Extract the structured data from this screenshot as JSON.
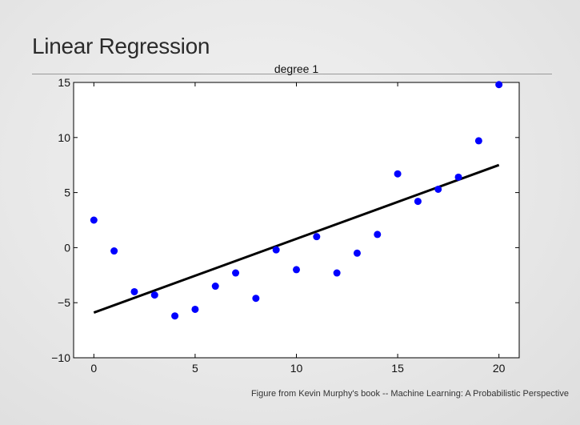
{
  "slide": {
    "title": "Linear Regression",
    "caption": "Figure from Kevin Murphy's book -- Machine Learning: A Probabilistic Perspective"
  },
  "chart_data": {
    "type": "scatter",
    "title": "degree 1",
    "xlabel": "",
    "ylabel": "",
    "xlim": [
      -1,
      21
    ],
    "ylim": [
      -10,
      15
    ],
    "xticks": [
      0,
      5,
      10,
      15,
      20
    ],
    "yticks": [
      -10,
      -5,
      0,
      5,
      10,
      15
    ],
    "grid": false,
    "legend": "none",
    "point_color": "#0000ff",
    "line_color": "#000000",
    "series": [
      {
        "kind": "points",
        "x": [
          0,
          1,
          2,
          3,
          4,
          5,
          6,
          7,
          8,
          9,
          10,
          11,
          12,
          13,
          14,
          15,
          16,
          17,
          18,
          19,
          20
        ],
        "y": [
          2.5,
          -0.3,
          -4.0,
          -4.3,
          -6.2,
          -5.6,
          -3.5,
          -2.3,
          -4.6,
          -0.2,
          -2.0,
          1.0,
          -2.3,
          -0.5,
          1.2,
          6.7,
          4.2,
          5.3,
          6.4,
          9.7,
          14.8
        ]
      },
      {
        "kind": "line",
        "x": [
          0,
          20
        ],
        "y": [
          -5.9,
          7.5
        ]
      }
    ]
  }
}
